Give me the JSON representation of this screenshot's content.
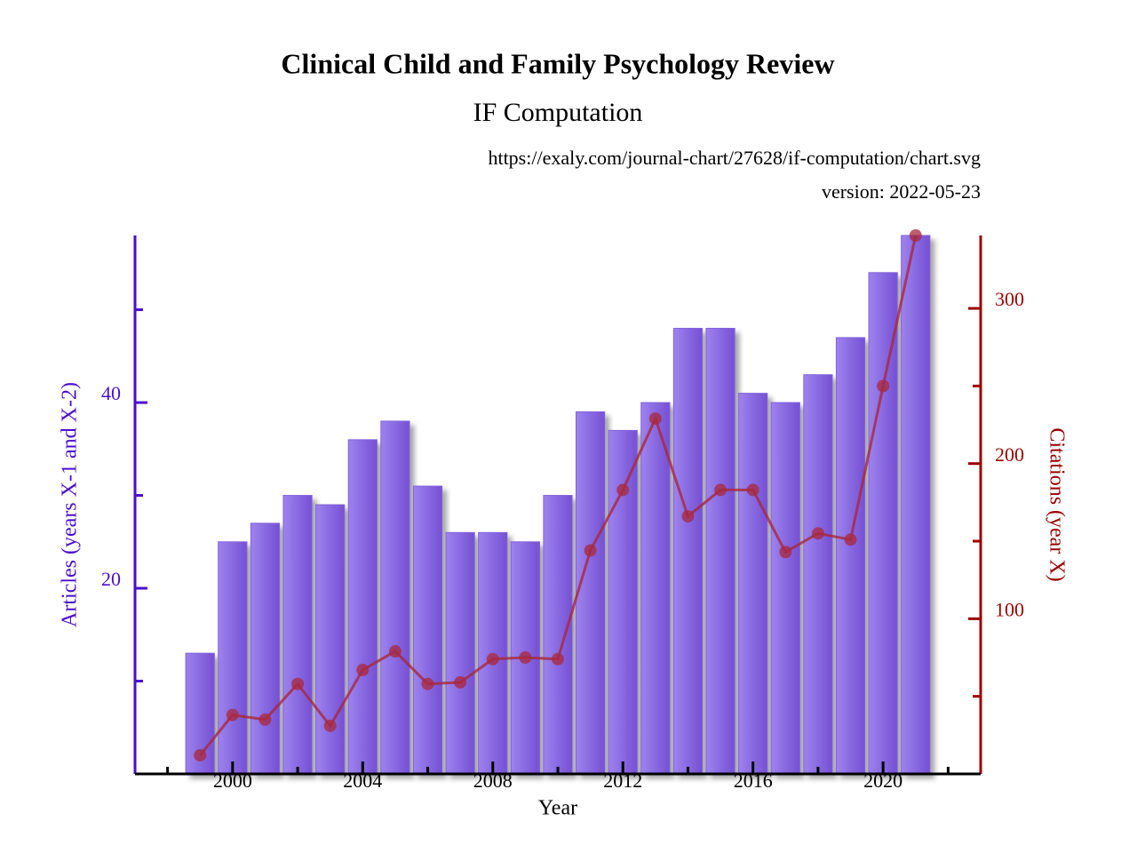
{
  "chart_data": {
    "type": "bar",
    "title": "Clinical Child and Family Psychology Review",
    "subtitle": "IF Computation",
    "url": "https://exaly.com/journal-chart/27628/if-computation/chart.svg",
    "version": "version: 2022-05-23",
    "x_label": "Year",
    "y_label": "Articles (years X-1 and X-2)",
    "y2_label": "Citations (year X)",
    "x": [
      1999,
      2000,
      2001,
      2002,
      2003,
      2004,
      2005,
      2006,
      2007,
      2008,
      2009,
      2010,
      2011,
      2012,
      2013,
      2014,
      2015,
      2016,
      2017,
      2018,
      2019,
      2020,
      2021
    ],
    "xlim": [
      1997,
      2023
    ],
    "xticks": [
      2000,
      2004,
      2008,
      2012,
      2016,
      2020
    ],
    "x_minor_ticks": [
      1998,
      2002,
      2006,
      2010,
      2014,
      2018,
      2022
    ],
    "ylim": [
      0,
      58
    ],
    "yticks": [
      20,
      40
    ],
    "y_minor_ticks": [
      10,
      30,
      50
    ],
    "y_color": "#4a0ecc",
    "y2lim": [
      0,
      347
    ],
    "y2ticks": [
      100,
      200,
      300
    ],
    "y2_minor_ticks": [
      50,
      150,
      250
    ],
    "y2_color": "#990000",
    "series": [
      {
        "type": "bar",
        "color": "#8462dc",
        "values": [
          13,
          25,
          27,
          30,
          29,
          36,
          38,
          31,
          26,
          26,
          25,
          30,
          39,
          37,
          40,
          48,
          48,
          41,
          40,
          43,
          47,
          54,
          58
        ]
      },
      {
        "type": "line",
        "axis": "y2",
        "color": "#a8283c",
        "values": [
          12,
          38,
          35,
          58,
          31,
          67,
          79,
          58,
          59,
          74,
          75,
          74,
          144,
          183,
          229,
          166,
          183,
          183,
          143,
          155,
          151,
          250,
          347
        ]
      }
    ]
  }
}
